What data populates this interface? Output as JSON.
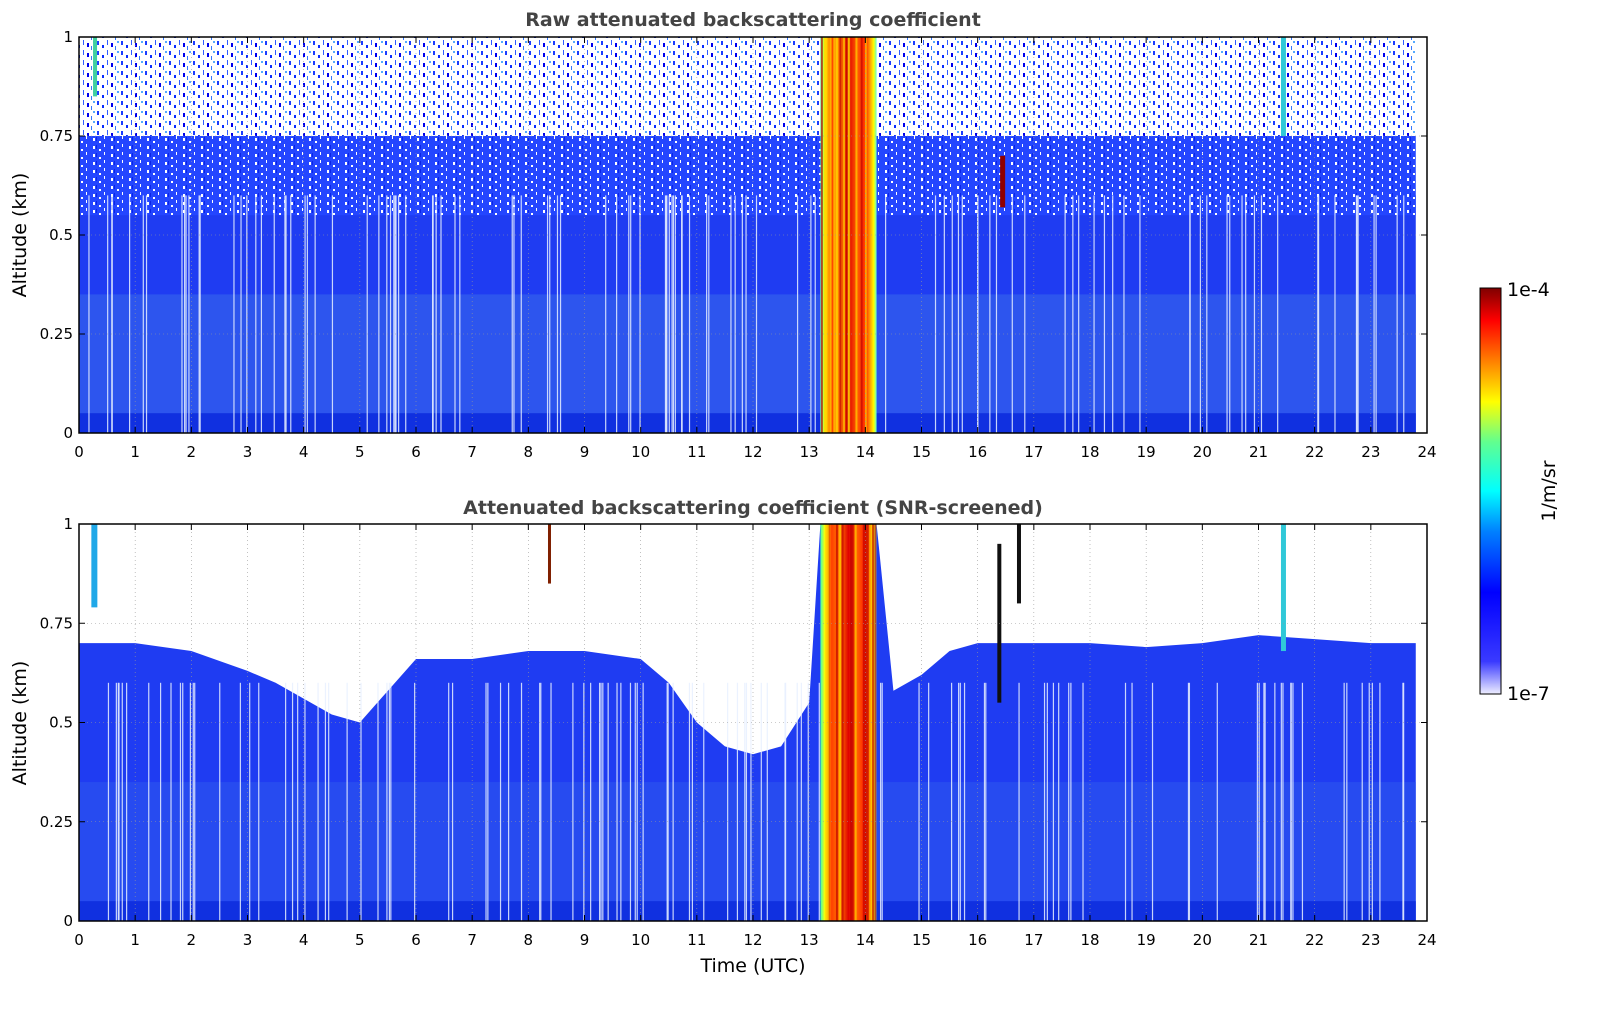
{
  "figure": {
    "colorbar": {
      "label": "1/m/sr",
      "max_label": "1e-4",
      "min_label": "1e-7",
      "scale": "log",
      "range": [
        1e-07,
        0.0001
      ],
      "colormap": [
        "#ffffff",
        "#0000ff",
        "#00ffff",
        "#ffff00",
        "#ff0000",
        "#7f0000"
      ]
    }
  },
  "chart_data": [
    {
      "type": "heatmap",
      "title": "Raw attenuated backscattering coefficient",
      "xlabel": "",
      "ylabel": "Altitude (km)",
      "xlim": [
        0,
        24
      ],
      "ylim": [
        0,
        1
      ],
      "x_ticks": [
        "0",
        "1",
        "2",
        "3",
        "4",
        "5",
        "6",
        "7",
        "8",
        "9",
        "10",
        "11",
        "12",
        "13",
        "14",
        "15",
        "16",
        "17",
        "18",
        "19",
        "20",
        "21",
        "22",
        "23",
        "24"
      ],
      "y_ticks": [
        "0",
        "0.25",
        "0.5",
        "0.75",
        "1"
      ],
      "grid": true,
      "notes_series": {
        "cloud_column_time_range_utc": [
          13.2,
          14.2
        ],
        "background_level": "1e-6 to 1e-5",
        "noise_white_above_km": 0.6
      }
    },
    {
      "type": "heatmap",
      "title": "Attenuated backscattering coefficient (SNR-screened)",
      "xlabel": "Time (UTC)",
      "ylabel": "Altitude (km)",
      "xlim": [
        0,
        24
      ],
      "ylim": [
        0,
        1
      ],
      "x_ticks": [
        "0",
        "1",
        "2",
        "3",
        "4",
        "5",
        "6",
        "7",
        "8",
        "9",
        "10",
        "11",
        "12",
        "13",
        "14",
        "15",
        "16",
        "17",
        "18",
        "19",
        "20",
        "21",
        "22",
        "23",
        "24"
      ],
      "y_ticks": [
        "0",
        "0.25",
        "0.5",
        "0.75",
        "1"
      ],
      "grid": true,
      "screened_top_altitude_km": {
        "time": [
          0,
          1,
          2,
          3,
          3.5,
          4,
          4.5,
          5,
          5.5,
          6,
          7,
          8,
          9,
          10,
          10.5,
          11,
          11.5,
          12,
          12.5,
          13,
          13.2,
          14.2,
          14.5,
          15,
          15.5,
          16,
          17,
          18,
          19,
          20,
          21,
          22,
          23,
          23.8
        ],
        "altitude": [
          0.7,
          0.7,
          0.68,
          0.63,
          0.6,
          0.56,
          0.52,
          0.5,
          0.58,
          0.66,
          0.66,
          0.68,
          0.68,
          0.66,
          0.6,
          0.5,
          0.44,
          0.42,
          0.44,
          0.55,
          1.0,
          1.0,
          0.58,
          0.62,
          0.68,
          0.7,
          0.7,
          0.7,
          0.69,
          0.7,
          0.72,
          0.71,
          0.7,
          0.7
        ]
      },
      "cloud_column_time_range_utc": [
        13.2,
        14.2
      ]
    }
  ]
}
